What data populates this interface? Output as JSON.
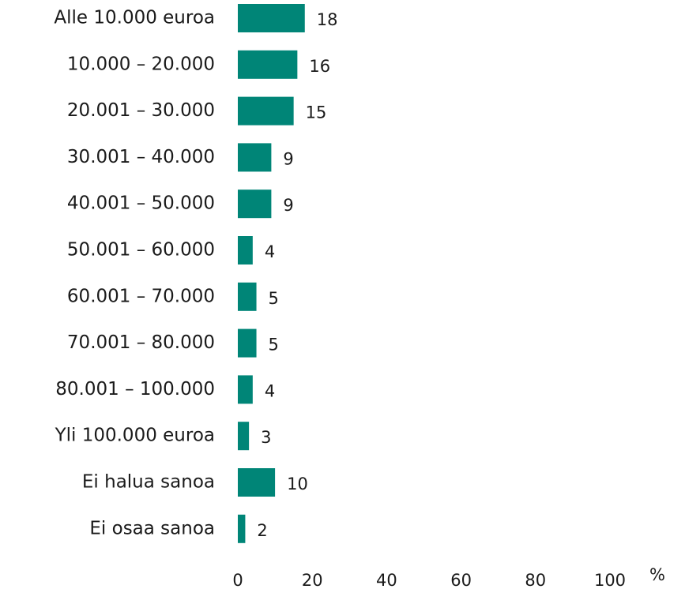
{
  "chart_data": {
    "type": "bar",
    "orientation": "horizontal",
    "categories": [
      "Alle 10.000 euroa",
      "10.000 – 20.000",
      "20.001 – 30.000",
      "30.001 – 40.000",
      "40.001 – 50.000",
      "50.001 – 60.000",
      "60.001 – 70.000",
      "70.001 – 80.000",
      "80.001 – 100.000",
      "Yli 100.000 euroa",
      "Ei halua sanoa",
      "Ei osaa sanoa"
    ],
    "values": [
      18,
      16,
      15,
      9,
      9,
      4,
      5,
      5,
      4,
      3,
      10,
      2
    ],
    "color": "#008577",
    "xlabel": "%",
    "xlim": [
      0,
      100
    ],
    "xticks": [
      0,
      20,
      40,
      60,
      80,
      100
    ],
    "grid": false
  }
}
